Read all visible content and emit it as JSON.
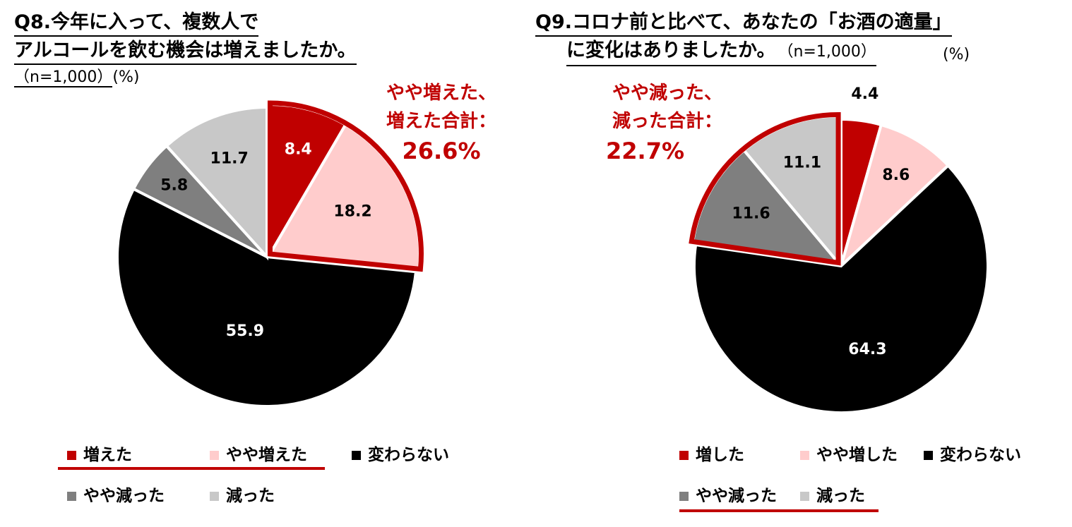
{
  "colors": {
    "increased": "#c00000",
    "slightly_increased": "#ffcccc",
    "unchanged": "#000000",
    "slightly_decreased": "#7f7f7f",
    "decreased": "#c8c8c8",
    "highlight": "#c00000"
  },
  "chart_data": [
    {
      "type": "pie",
      "title": [
        "Q8.今年に入って、複数人で",
        "アルコールを飲む機会は増えましたか。"
      ],
      "note": "（n=1,000）",
      "unit": "(%)",
      "slices": [
        {
          "label": "増えた",
          "value": 8.4,
          "text": "8.4"
        },
        {
          "label": "やや増えた",
          "value": 18.2,
          "text": "18.2"
        },
        {
          "label": "変わらない",
          "value": 55.9,
          "text": "55.9"
        },
        {
          "label": "やや減った",
          "value": 5.8,
          "text": "5.8"
        },
        {
          "label": "減った",
          "value": 11.7,
          "text": "11.7"
        }
      ],
      "callout": [
        "やや増えた、",
        "増えた合計：",
        "26.6%"
      ]
    },
    {
      "type": "pie",
      "title": [
        "Q9.コロナ前と比べて、あなたの「お酒の適量」",
        "に変化はありましたか。"
      ],
      "note": "（n=1,000）",
      "unit": "(%)",
      "slices": [
        {
          "label": "増した",
          "value": 4.4,
          "text": "4.4"
        },
        {
          "label": "やや増した",
          "value": 8.6,
          "text": "8.6"
        },
        {
          "label": "変わらない",
          "value": 64.3,
          "text": "64.3"
        },
        {
          "label": "やや減った",
          "value": 11.6,
          "text": "11.6"
        },
        {
          "label": "減った",
          "value": 11.1,
          "text": "11.1"
        }
      ],
      "callout": [
        "やや減った、",
        "減った合計：",
        "22.7%"
      ]
    }
  ]
}
